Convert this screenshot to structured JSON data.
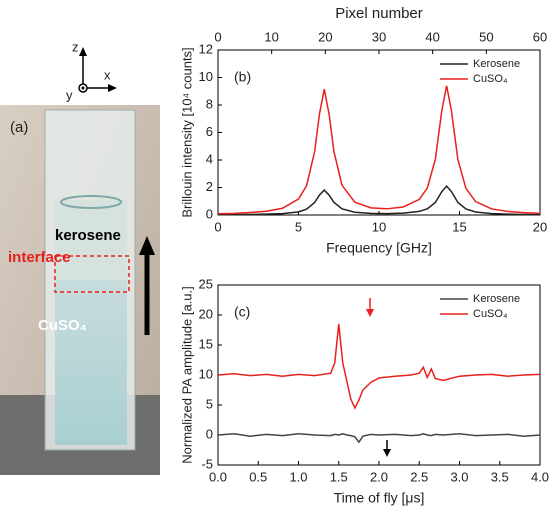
{
  "photo": {
    "axis_z": "z",
    "axis_x": "x",
    "axis_y": "y",
    "panel_label": "(a)",
    "upper_liquid": "kerosene",
    "interface": "interface",
    "lower_liquid": "CuSO₄"
  },
  "chart_data": [
    {
      "type": "line",
      "panel_label": "(b)",
      "xlabel": "Frequency [GHz]",
      "ylabel": "Brillouin intensity [10⁴ counts]",
      "x2label": "Pixel number",
      "xlim": [
        0,
        20
      ],
      "xticks": [
        0,
        5,
        10,
        15,
        20
      ],
      "x2lim": [
        0,
        60
      ],
      "x2ticks": [
        0,
        10,
        20,
        30,
        40,
        50,
        60
      ],
      "ylim": [
        0,
        12
      ],
      "yticks": [
        0,
        2,
        4,
        6,
        8,
        10,
        12
      ],
      "legend": "upper right",
      "x": [
        0,
        1,
        2,
        3,
        4,
        5,
        5.5,
        6,
        6.3,
        6.6,
        6.9,
        7.2,
        7.7,
        8.5,
        9.5,
        10.5,
        11.5,
        12.5,
        13,
        13.5,
        13.9,
        14.2,
        14.5,
        14.9,
        15.4,
        16,
        17,
        18,
        19,
        20
      ],
      "series": [
        {
          "name": "Kerosene",
          "color": "#222222",
          "values": [
            0.02,
            0.03,
            0.04,
            0.06,
            0.1,
            0.23,
            0.42,
            0.91,
            1.45,
            1.81,
            1.45,
            0.92,
            0.45,
            0.2,
            0.12,
            0.1,
            0.14,
            0.26,
            0.45,
            0.91,
            1.7,
            2.1,
            1.7,
            0.91,
            0.44,
            0.22,
            0.1,
            0.06,
            0.04,
            0.03
          ]
        },
        {
          "name": "CuSO₄",
          "color": "#e8201c",
          "values": [
            0.09,
            0.12,
            0.18,
            0.27,
            0.49,
            1.16,
            2.13,
            4.6,
            7.33,
            9.15,
            7.34,
            4.62,
            2.17,
            0.93,
            0.52,
            0.45,
            0.58,
            1.13,
            1.96,
            4.05,
            7.59,
            9.4,
            7.58,
            4.03,
            1.93,
            0.98,
            0.44,
            0.26,
            0.17,
            0.12
          ]
        }
      ]
    },
    {
      "type": "line",
      "panel_label": "(c)",
      "xlabel": "Time of fly [μs]",
      "ylabel": "Normalized PA amplitude [a.u.]",
      "xlim": [
        0,
        4
      ],
      "xticks": [
        {
          "value": 0,
          "label": "0.0"
        },
        0.5,
        {
          "value": 1,
          "label": "1.0"
        },
        1.5,
        {
          "value": 2,
          "label": "2.0"
        },
        2.5,
        {
          "value": 3,
          "label": "3.0"
        },
        3.5,
        {
          "value": 4,
          "label": "4.0"
        }
      ],
      "ylim": [
        -5,
        25
      ],
      "yticks": [
        -5,
        0,
        5,
        10,
        15,
        20,
        25
      ],
      "legend": "upper right",
      "x": [
        0,
        0.2,
        0.4,
        0.6,
        0.8,
        1.0,
        1.2,
        1.4,
        1.45,
        1.5,
        1.55,
        1.6,
        1.65,
        1.7,
        1.75,
        1.8,
        1.9,
        2.0,
        2.2,
        2.4,
        2.5,
        2.55,
        2.6,
        2.65,
        2.7,
        2.8,
        3.0,
        3.2,
        3.4,
        3.6,
        3.8,
        4.0
      ],
      "series": [
        {
          "name": "Kerosene",
          "color": "#444444",
          "values": [
            0,
            0.2,
            -0.2,
            0.1,
            -0.1,
            0.2,
            0,
            -0.1,
            0.1,
            0,
            0.2,
            0,
            -0.1,
            -0.3,
            -1.2,
            -0.2,
            0.1,
            0,
            0.1,
            -0.1,
            0,
            0.2,
            0,
            -0.1,
            0.1,
            0,
            0.2,
            -0.1,
            0,
            0.1,
            -0.2,
            0
          ]
        },
        {
          "name": "CuSO₄",
          "color": "#e8201c",
          "values": [
            10,
            10.2,
            9.9,
            10.1,
            9.8,
            10.1,
            9.9,
            10.3,
            12,
            18.5,
            12,
            9,
            6,
            4.5,
            5.8,
            7.5,
            8.8,
            9.5,
            9.8,
            10,
            10.3,
            11.3,
            9.6,
            11,
            9.4,
            9.1,
            9.8,
            10,
            10.1,
            9.8,
            10,
            10.1
          ]
        }
      ]
    }
  ]
}
